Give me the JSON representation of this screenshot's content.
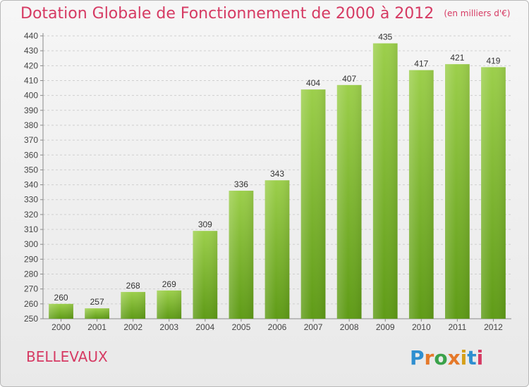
{
  "header": {
    "title": "Dotation Globale de Fonctionnement de 2000 à 2012",
    "unit": "(en milliers d'€)"
  },
  "footer": {
    "city": "BELLEVAUX",
    "logo_text": "Proxiti",
    "logo_colors": [
      "#2f8fd0",
      "#e5792a",
      "#3aa24a",
      "#e5792a",
      "#d6a019",
      "#2f8fd0",
      "#d63a63"
    ]
  },
  "colors": {
    "title": "#d63a63",
    "bar_top": "#9ccf4b",
    "bar_bottom": "#5f9b17",
    "grid": "#cfcfcf"
  },
  "chart_data": {
    "type": "bar",
    "title": "Dotation Globale de Fonctionnement de 2000 à 2012",
    "subtitle": "(en milliers d'€)",
    "xlabel": "",
    "ylabel": "",
    "categories": [
      "2000",
      "2001",
      "2002",
      "2003",
      "2004",
      "2005",
      "2006",
      "2007",
      "2008",
      "2009",
      "2010",
      "2011",
      "2012"
    ],
    "values": [
      260,
      257,
      268,
      269,
      309,
      336,
      343,
      404,
      407,
      435,
      417,
      421,
      419
    ],
    "ylim": [
      250,
      440
    ],
    "ytick_step": 10,
    "grid": true,
    "data_labels": true
  }
}
